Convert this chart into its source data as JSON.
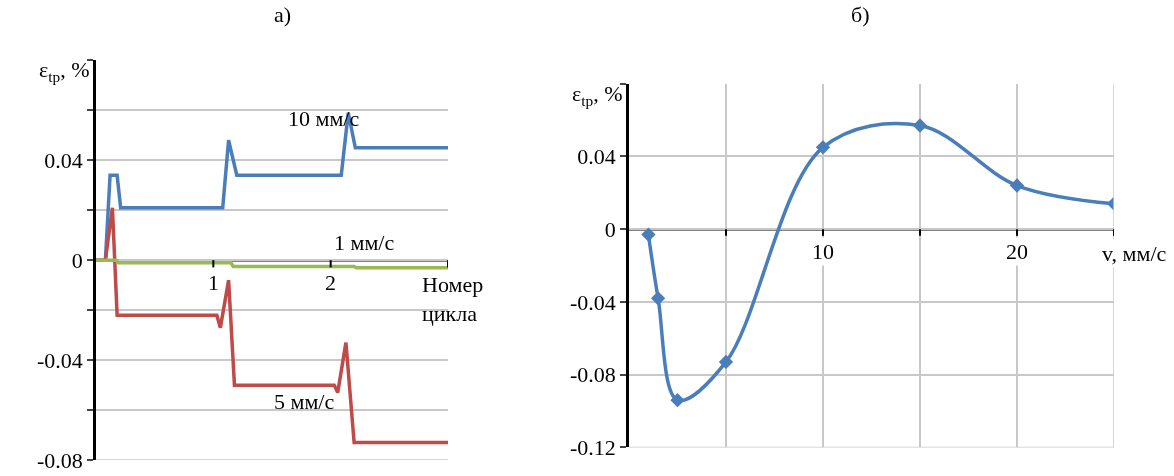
{
  "chart_data": [
    {
      "type": "line",
      "title": "а)",
      "xlabel": "Номер цикла",
      "ylabel": "ε$_{tp}$, %",
      "xlim": [
        0,
        3
      ],
      "ylim": [
        -0.08,
        0.08
      ],
      "xticks": [
        1,
        2,
        {
          "value": 3,
          "label": null
        }
      ],
      "yticks": [
        -0.08,
        {
          "value": -0.06,
          "label": null
        },
        -0.04,
        {
          "value": -0.02,
          "label": null
        },
        0,
        {
          "value": 0.02,
          "label": null
        },
        0.04,
        {
          "value": 0.06,
          "label": null
        },
        {
          "value": 0.08,
          "label": null
        }
      ],
      "grid": "y",
      "legend": false,
      "marker": "none",
      "line_style": "solid",
      "series": [
        {
          "name": "10 мм/с",
          "color": "#4a7ebb",
          "x": [
            0,
            0.08,
            0.12,
            0.18,
            0.21,
            1.08,
            1.13,
            1.2,
            2.09,
            2.15,
            2.21,
            3
          ],
          "values": [
            0,
            0,
            0.034,
            0.034,
            0.021,
            0.021,
            0.048,
            0.034,
            0.034,
            0.059,
            0.045,
            0.045
          ]
        },
        {
          "name": "5 мм/с",
          "color": "#be4b48",
          "x": [
            0,
            0.08,
            0.14,
            0.18,
            1.03,
            1.06,
            1.13,
            1.18,
            2.03,
            2.06,
            2.13,
            2.2,
            3
          ],
          "values": [
            0,
            0,
            0.021,
            -0.022,
            -0.022,
            -0.027,
            -0.008,
            -0.05,
            -0.05,
            -0.053,
            -0.033,
            -0.073,
            -0.073
          ]
        },
        {
          "name": "1 мм/с",
          "color": "#98b954",
          "x": [
            0,
            0.17,
            0.19,
            1.15,
            1.17,
            2.2,
            2.22,
            3
          ],
          "values": [
            0,
            0,
            -0.001,
            -0.001,
            -0.0025,
            -0.0025,
            -0.003,
            -0.003
          ]
        }
      ]
    },
    {
      "type": "line",
      "title": "б)",
      "xlabel": "v, мм/с",
      "ylabel": "ε$_{tp}$, %",
      "xlim": [
        0,
        25
      ],
      "ylim": [
        -0.12,
        0.08
      ],
      "xticks": [
        {
          "value": 5,
          "label": null
        },
        10,
        {
          "value": 15,
          "label": null
        },
        20,
        {
          "value": 25,
          "label": null
        }
      ],
      "yticks": [
        -0.12,
        -0.08,
        -0.04,
        0,
        0.04,
        {
          "value": 0.08,
          "label": null
        }
      ],
      "grid": true,
      "legend": false,
      "marker": "diamond",
      "line_style": "solid",
      "series": [
        {
          "color": "#4a7ebb",
          "x": [
            1,
            1.5,
            2.5,
            5,
            10,
            15,
            20,
            25
          ],
          "values": [
            -0.003,
            -0.038,
            -0.094,
            -0.073,
            0.045,
            0.057,
            0.024,
            0.014
          ]
        }
      ]
    }
  ]
}
